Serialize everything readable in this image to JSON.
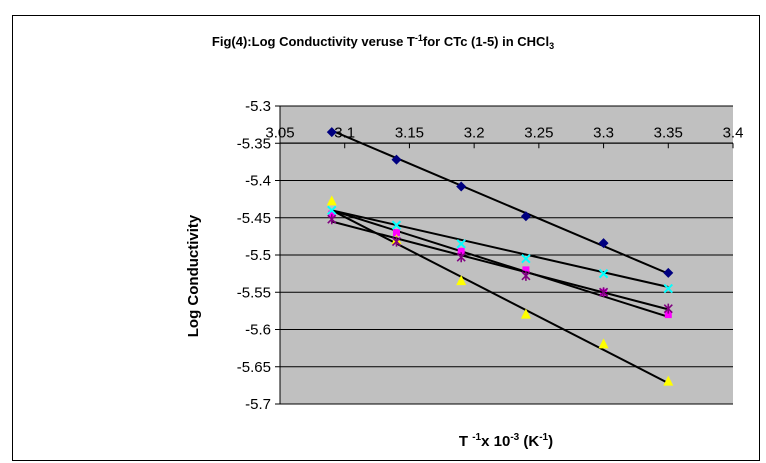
{
  "chart_data": {
    "type": "scatter",
    "title": {
      "prefix": "Fig(4):Log Conductivity veruse T",
      "sup": "-1",
      "middle": "for CTc (1-5) in  CHCl",
      "sub": "3"
    },
    "xlabel": {
      "prefix": "T ",
      "sup1": "-1",
      "middle": "x 10",
      "sup2": "-3",
      "after": " (K",
      "sup3": "-1",
      "end": ")"
    },
    "ylabel": "Log Conductivity",
    "xlim": [
      3.05,
      3.4
    ],
    "ylim": [
      -5.7,
      -5.3
    ],
    "x_ticks": [
      "3.05",
      "3.1",
      "3.15",
      "3.2",
      "3.25",
      "3.3",
      "3.35",
      "3.4"
    ],
    "y_ticks": [
      "-5.3",
      "-5.35",
      "-5.4",
      "-5.45",
      "-5.5",
      "-5.55",
      "-5.6",
      "-5.65",
      "-5.7"
    ],
    "x_tick_values": [
      3.05,
      3.1,
      3.15,
      3.2,
      3.25,
      3.3,
      3.35,
      3.4
    ],
    "y_tick_values": [
      -5.3,
      -5.35,
      -5.4,
      -5.45,
      -5.5,
      -5.55,
      -5.6,
      -5.65,
      -5.7
    ],
    "grid": "horizontal",
    "plot_background": "#c0c0c0",
    "x_axis_position": "top",
    "x": [
      3.09,
      3.14,
      3.19,
      3.24,
      3.3,
      3.35
    ],
    "series": [
      {
        "marker": "diamond",
        "color": "#000080",
        "values": [
          -5.335,
          -5.372,
          -5.408,
          -5.448,
          -5.484,
          -5.524
        ],
        "trend": [
          -5.333,
          -5.525
        ]
      },
      {
        "marker": "square",
        "color": "#ff00ff",
        "values": [
          -5.445,
          -5.47,
          -5.495,
          -5.52,
          -5.55,
          -5.58
        ],
        "trend": [
          -5.44,
          -5.583
        ]
      },
      {
        "marker": "triangle",
        "color": "#ffff00",
        "values": [
          -5.428,
          -5.48,
          -5.535,
          -5.58,
          -5.62,
          -5.67
        ],
        "trend": [
          -5.44,
          -5.672
        ]
      },
      {
        "marker": "x",
        "color": "#00ffff",
        "values": [
          -5.44,
          -5.46,
          -5.485,
          -5.505,
          -5.525,
          -5.545
        ],
        "trend": [
          -5.44,
          -5.543
        ]
      },
      {
        "marker": "star",
        "color": "#800080",
        "values": [
          -5.452,
          -5.482,
          -5.503,
          -5.528,
          -5.55,
          -5.572
        ],
        "trend": [
          -5.455,
          -5.573
        ]
      }
    ]
  }
}
